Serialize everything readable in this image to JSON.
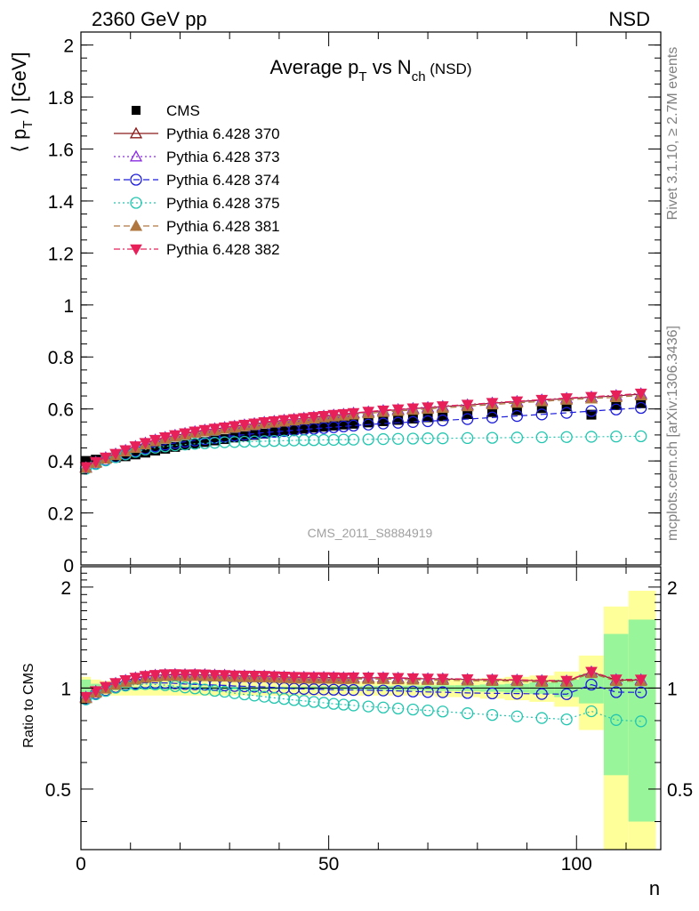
{
  "header": {
    "energy_label": "2360 GeV pp",
    "process_label": "NSD",
    "rivet_label": "Rivet 3.1.10, ≥ 2.7M events",
    "mcplots_label": "mcplots.cern.ch [arXiv:1306.3436]",
    "analysis_label": "CMS_2011_S8884919"
  },
  "chart_data": {
    "type": "scatter",
    "title": {
      "main": "Average p",
      "sub1": "T",
      "mid": " vs N",
      "sub2": "ch",
      "tail": " (NSD)"
    },
    "xlabel": "n",
    "main_panel": {
      "ylabel": {
        "pre": "⟨ p",
        "sub": "T",
        "post": " ⟩ [GeV]"
      },
      "xlim": [
        0,
        117
      ],
      "ylim": [
        0,
        2.05
      ],
      "yticks": [
        "0",
        "0.2",
        "0.4",
        "0.6",
        "0.8",
        "1",
        "1.2",
        "1.4",
        "1.6",
        "1.8",
        "2"
      ]
    },
    "ratio_panel": {
      "ylabel": "Ratio to CMS",
      "ylim": [
        0.33,
        2.3
      ],
      "log_scale": true,
      "left_ticks": [
        "0.5",
        "1",
        "2"
      ],
      "right_ticks": [
        "0.5",
        "1",
        "2"
      ]
    },
    "xticks": [
      "0",
      "50",
      "100"
    ],
    "legend": {
      "position": "top-left",
      "entries": [
        "CMS",
        "Pythia 6.428 370",
        "Pythia 6.428 373",
        "Pythia 6.428 374",
        "Pythia 6.428 375",
        "Pythia 6.428 381",
        "Pythia 6.428 382"
      ]
    },
    "series": [
      {
        "name": "CMS",
        "color": "#000000",
        "marker": "square",
        "line": "none",
        "x": [
          1,
          3,
          5,
          7,
          9,
          11,
          13,
          15,
          17,
          19,
          21,
          23,
          25,
          27,
          29,
          31,
          33,
          35,
          37,
          39,
          41,
          43,
          45,
          47,
          49,
          51,
          53,
          55,
          58,
          61,
          64,
          67,
          70,
          73,
          78,
          83,
          88,
          93,
          98,
          103,
          108,
          113
        ],
        "y": [
          0.4,
          0.405,
          0.41,
          0.413,
          0.418,
          0.425,
          0.432,
          0.44,
          0.447,
          0.454,
          0.461,
          0.467,
          0.473,
          0.479,
          0.484,
          0.49,
          0.495,
          0.5,
          0.505,
          0.51,
          0.515,
          0.52,
          0.524,
          0.528,
          0.532,
          0.536,
          0.54,
          0.543,
          0.548,
          0.553,
          0.558,
          0.563,
          0.568,
          0.572,
          0.58,
          0.588,
          0.595,
          0.603,
          0.61,
          0.578,
          0.615,
          0.622
        ],
        "band_stat": [
          0.06,
          0.03,
          0.02,
          0.015,
          0.012,
          0.01,
          0.01,
          0.01,
          0.01,
          0.01,
          0.01,
          0.01,
          0.01,
          0.01,
          0.01,
          0.01,
          0.01,
          0.01,
          0.01,
          0.01,
          0.01,
          0.01,
          0.01,
          0.012,
          0.012,
          0.012,
          0.013,
          0.013,
          0.014,
          0.015,
          0.016,
          0.017,
          0.018,
          0.019,
          0.02,
          0.025,
          0.03,
          0.04,
          0.06,
          0.1,
          0.45,
          0.6
        ],
        "band_total": [
          0.08,
          0.06,
          0.05,
          0.05,
          0.05,
          0.05,
          0.05,
          0.05,
          0.05,
          0.05,
          0.05,
          0.05,
          0.05,
          0.05,
          0.05,
          0.05,
          0.05,
          0.05,
          0.05,
          0.05,
          0.05,
          0.05,
          0.05,
          0.05,
          0.05,
          0.05,
          0.05,
          0.05,
          0.05,
          0.05,
          0.05,
          0.05,
          0.05,
          0.06,
          0.06,
          0.07,
          0.08,
          0.09,
          0.12,
          0.25,
          0.75,
          0.95
        ]
      },
      {
        "name": "Pythia 6.428 370",
        "color": "#8b1a1a",
        "marker": "triangle-open",
        "line": "solid",
        "x": [
          1,
          3,
          5,
          7,
          9,
          11,
          13,
          15,
          17,
          19,
          21,
          23,
          25,
          27,
          29,
          31,
          33,
          35,
          37,
          39,
          41,
          43,
          45,
          47,
          49,
          51,
          53,
          55,
          58,
          61,
          64,
          67,
          70,
          73,
          78,
          83,
          88,
          93,
          98,
          103,
          108,
          113
        ],
        "y": [
          0.375,
          0.395,
          0.412,
          0.426,
          0.44,
          0.455,
          0.468,
          0.48,
          0.49,
          0.498,
          0.505,
          0.512,
          0.518,
          0.523,
          0.528,
          0.533,
          0.538,
          0.543,
          0.548,
          0.552,
          0.556,
          0.56,
          0.564,
          0.568,
          0.572,
          0.576,
          0.579,
          0.583,
          0.588,
          0.593,
          0.597,
          0.601,
          0.605,
          0.609,
          0.615,
          0.622,
          0.628,
          0.634,
          0.64,
          0.645,
          0.65,
          0.657
        ]
      },
      {
        "name": "Pythia 6.428 373",
        "color": "#8a2be2",
        "marker": "triangle-open",
        "line": "dotted",
        "x": [
          1,
          3,
          5,
          7,
          9,
          11,
          13,
          15,
          17,
          19,
          21,
          23,
          25,
          27,
          29,
          31,
          33,
          35,
          37,
          39,
          41,
          43,
          45,
          47,
          49,
          51,
          53,
          55,
          58,
          61,
          64,
          67,
          70,
          73,
          78,
          83,
          88,
          93,
          98,
          103,
          108,
          113
        ],
        "y": [
          0.376,
          0.396,
          0.413,
          0.427,
          0.441,
          0.456,
          0.469,
          0.481,
          0.491,
          0.499,
          0.506,
          0.513,
          0.519,
          0.524,
          0.529,
          0.534,
          0.539,
          0.544,
          0.549,
          0.553,
          0.557,
          0.561,
          0.565,
          0.569,
          0.573,
          0.577,
          0.58,
          0.584,
          0.589,
          0.594,
          0.598,
          0.602,
          0.606,
          0.61,
          0.616,
          0.623,
          0.629,
          0.635,
          0.641,
          0.646,
          0.652,
          0.659
        ]
      },
      {
        "name": "Pythia 6.428 374",
        "color": "#1c1cdc",
        "marker": "circle-open",
        "line": "dashed",
        "x": [
          1,
          3,
          5,
          7,
          9,
          11,
          13,
          15,
          17,
          19,
          21,
          23,
          25,
          27,
          29,
          31,
          33,
          35,
          37,
          39,
          41,
          43,
          45,
          47,
          49,
          51,
          53,
          55,
          58,
          61,
          64,
          67,
          70,
          73,
          78,
          83,
          88,
          93,
          98,
          103,
          108,
          113
        ],
        "y": [
          0.372,
          0.39,
          0.404,
          0.416,
          0.427,
          0.438,
          0.448,
          0.456,
          0.463,
          0.469,
          0.474,
          0.479,
          0.484,
          0.489,
          0.493,
          0.497,
          0.501,
          0.505,
          0.509,
          0.512,
          0.515,
          0.518,
          0.521,
          0.524,
          0.527,
          0.53,
          0.533,
          0.536,
          0.54,
          0.544,
          0.547,
          0.55,
          0.553,
          0.556,
          0.561,
          0.567,
          0.573,
          0.579,
          0.585,
          0.592,
          0.598,
          0.604
        ]
      },
      {
        "name": "Pythia 6.428 375",
        "color": "#22c6b0",
        "marker": "circle-open",
        "line": "dotted",
        "x": [
          1,
          3,
          5,
          7,
          9,
          11,
          13,
          15,
          17,
          19,
          21,
          23,
          25,
          27,
          29,
          31,
          33,
          35,
          37,
          39,
          41,
          43,
          45,
          47,
          49,
          51,
          53,
          55,
          58,
          61,
          64,
          67,
          70,
          73,
          78,
          83,
          88,
          93,
          98,
          103,
          108,
          113
        ],
        "y": [
          0.37,
          0.388,
          0.402,
          0.414,
          0.425,
          0.435,
          0.444,
          0.451,
          0.456,
          0.46,
          0.463,
          0.466,
          0.468,
          0.47,
          0.472,
          0.473,
          0.474,
          0.475,
          0.476,
          0.477,
          0.478,
          0.479,
          0.48,
          0.48,
          0.481,
          0.481,
          0.482,
          0.482,
          0.483,
          0.484,
          0.485,
          0.486,
          0.487,
          0.487,
          0.488,
          0.489,
          0.49,
          0.491,
          0.492,
          0.493,
          0.494,
          0.495
        ]
      },
      {
        "name": "Pythia 6.428 381",
        "color": "#b07840",
        "marker": "triangle-filled",
        "line": "dashed",
        "x": [
          1,
          3,
          5,
          7,
          9,
          11,
          13,
          15,
          17,
          19,
          21,
          23,
          25,
          27,
          29,
          31,
          33,
          35,
          37,
          39,
          41,
          43,
          45,
          47,
          49,
          51,
          53,
          55,
          58,
          61,
          64,
          67,
          70,
          73,
          78,
          83,
          88,
          93,
          98,
          103,
          108,
          113
        ],
        "y": [
          0.373,
          0.392,
          0.408,
          0.422,
          0.436,
          0.45,
          0.463,
          0.475,
          0.485,
          0.493,
          0.5,
          0.507,
          0.513,
          0.518,
          0.523,
          0.528,
          0.533,
          0.538,
          0.543,
          0.547,
          0.551,
          0.555,
          0.559,
          0.563,
          0.567,
          0.571,
          0.574,
          0.578,
          0.583,
          0.588,
          0.592,
          0.596,
          0.6,
          0.604,
          0.61,
          0.617,
          0.623,
          0.629,
          0.635,
          0.64,
          0.645,
          0.652
        ]
      },
      {
        "name": "Pythia 6.428 382",
        "color": "#e8205a",
        "marker": "triangle-down-filled",
        "line": "dashdot",
        "x": [
          1,
          3,
          5,
          7,
          9,
          11,
          13,
          15,
          17,
          19,
          21,
          23,
          25,
          27,
          29,
          31,
          33,
          35,
          37,
          39,
          41,
          43,
          45,
          47,
          49,
          51,
          53,
          55,
          58,
          61,
          64,
          67,
          70,
          73,
          78,
          83,
          88,
          93,
          98,
          103,
          108,
          113
        ],
        "y": [
          0.377,
          0.397,
          0.414,
          0.428,
          0.442,
          0.457,
          0.47,
          0.482,
          0.492,
          0.5,
          0.507,
          0.514,
          0.52,
          0.525,
          0.53,
          0.535,
          0.54,
          0.545,
          0.55,
          0.554,
          0.558,
          0.562,
          0.566,
          0.57,
          0.574,
          0.578,
          0.581,
          0.585,
          0.59,
          0.595,
          0.599,
          0.603,
          0.607,
          0.611,
          0.617,
          0.624,
          0.63,
          0.636,
          0.642,
          0.647,
          0.653,
          0.66
        ]
      }
    ]
  }
}
